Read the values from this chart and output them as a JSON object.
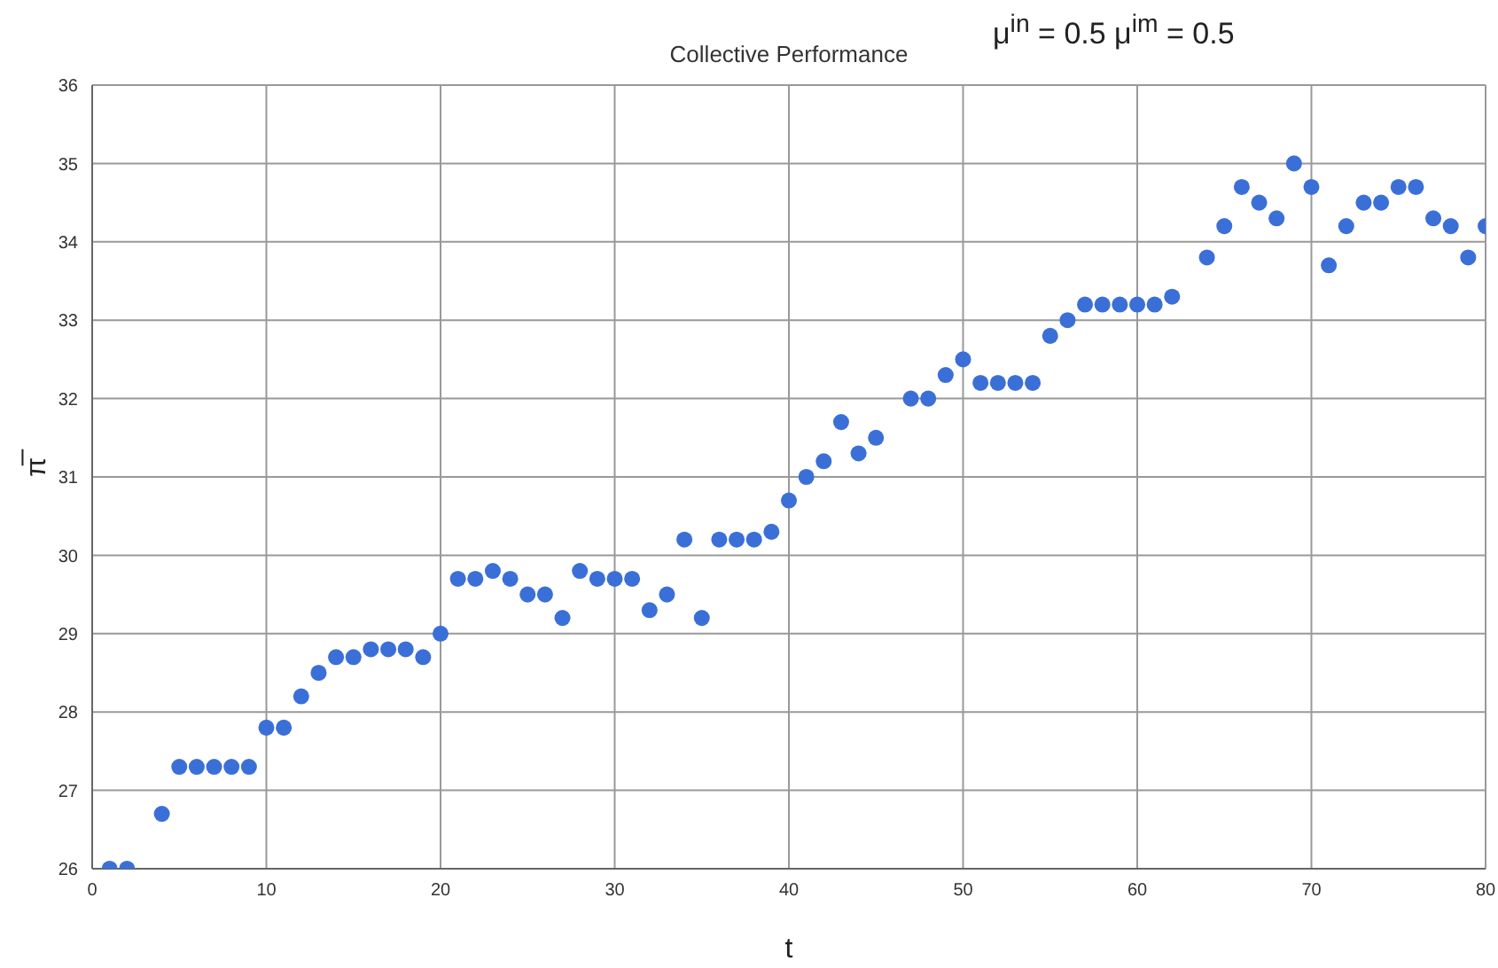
{
  "chart_data": {
    "type": "scatter",
    "title": "Collective Performance",
    "annotations": [
      "μ$^{in}$ = 0.5  μ$^{im}$ = 0.5"
    ],
    "xlabel": "t",
    "ylabel": "π̅",
    "x": [
      1,
      2,
      4,
      5,
      6,
      7,
      8,
      9,
      10,
      11,
      12,
      13,
      14,
      15,
      16,
      17,
      18,
      19,
      20,
      21,
      22,
      23,
      24,
      25,
      26,
      27,
      28,
      29,
      30,
      31,
      32,
      33,
      34,
      35,
      36,
      37,
      38,
      39,
      40,
      41,
      42,
      43,
      44,
      45,
      47,
      48,
      49,
      50,
      51,
      52,
      53,
      54,
      55,
      56,
      57,
      58,
      59,
      60,
      61,
      62,
      64,
      65,
      66,
      67,
      68,
      69,
      70,
      71,
      72,
      73,
      74,
      75,
      76,
      77,
      78,
      79,
      80
    ],
    "series": [
      {
        "color": "#3b6fd8",
        "values": [
          26,
          26,
          26.7,
          27.3,
          27.3,
          27.3,
          27.3,
          27.3,
          27.8,
          27.8,
          28.2,
          28.5,
          28.7,
          28.7,
          28.8,
          28.8,
          28.8,
          28.7,
          29,
          29.7,
          29.7,
          29.8,
          29.7,
          29.5,
          29.5,
          29.2,
          29.8,
          29.7,
          29.7,
          29.7,
          29.3,
          29.5,
          30.2,
          29.2,
          30.2,
          30.2,
          30.2,
          30.3,
          30.7,
          31,
          31.2,
          31.7,
          31.3,
          31.5,
          32,
          32,
          32.3,
          32.5,
          32.2,
          32.2,
          32.2,
          32.2,
          32.8,
          33,
          33.2,
          33.2,
          33.2,
          33.2,
          33.2,
          33.3,
          33.8,
          34.2,
          34.7,
          34.5,
          34.3,
          35,
          34.7,
          33.7,
          34.2,
          34.5,
          34.5,
          34.7,
          34.7,
          34.3,
          34.2,
          33.8,
          34.2
        ]
      }
    ],
    "xlim": [
      0,
      80
    ],
    "xticks": [
      0,
      10,
      20,
      30,
      40,
      50,
      60,
      70,
      80
    ],
    "ylim": [
      26,
      36
    ],
    "yticks": [
      26,
      27,
      28,
      29,
      30,
      31,
      32,
      33,
      34,
      35,
      36
    ],
    "grid": true,
    "marker": "circle",
    "legend": false
  }
}
